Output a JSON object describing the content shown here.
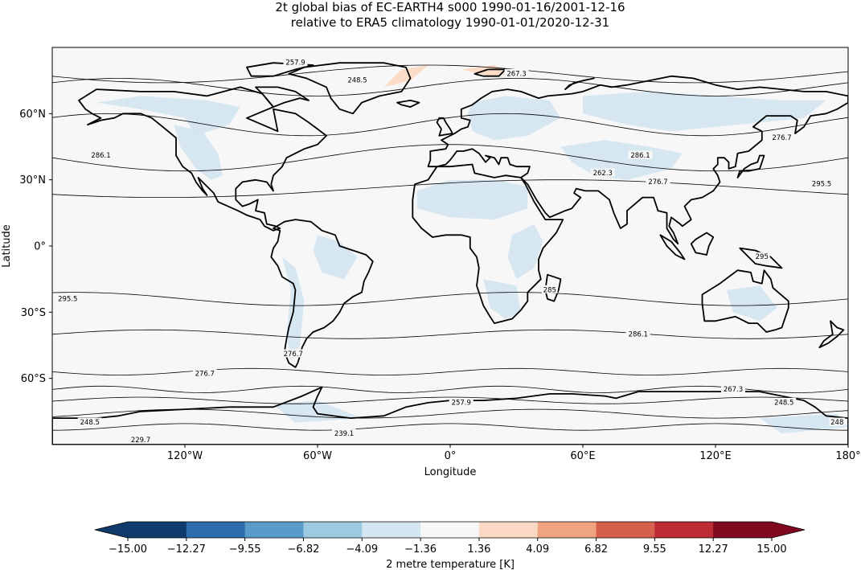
{
  "title": {
    "line1": "2t global bias of EC-EARTH4 s000 1990-01-16/2001-12-16",
    "line2": "relative to ERA5 climatology 1990-01-01/2020-12-31"
  },
  "colors": {
    "land_outline": "#000000",
    "background": "#f7f7f7",
    "bias_light_blue": "#d1e5f0",
    "bias_light_red": "#fddbc7"
  },
  "chart_data": {
    "type": "heatmap",
    "projection": "PlateCarree",
    "xlabel": "Longitude",
    "ylabel": "Latitude",
    "xlim": [
      -180,
      180
    ],
    "ylim": [
      -90,
      90
    ],
    "x_ticks": [
      {
        "value": -120,
        "label": "120°W"
      },
      {
        "value": -60,
        "label": "60°W"
      },
      {
        "value": 0,
        "label": "0°"
      },
      {
        "value": 60,
        "label": "60°E"
      },
      {
        "value": 120,
        "label": "120°E"
      },
      {
        "value": 180,
        "label": "180°"
      }
    ],
    "y_ticks": [
      {
        "value": 60,
        "label": "60°N"
      },
      {
        "value": 30,
        "label": "30°N"
      },
      {
        "value": 0,
        "label": "0°"
      },
      {
        "value": -30,
        "label": "30°S"
      },
      {
        "value": -60,
        "label": "60°S"
      }
    ],
    "colorbar": {
      "label": "2 metre temperature [K]",
      "ticks": [
        "−15.00",
        "−12.27",
        "−9.55",
        "−6.82",
        "−4.09",
        "−1.36",
        "1.36",
        "4.09",
        "6.82",
        "9.55",
        "12.27",
        "15.00"
      ],
      "colors": [
        "#0f3b6d",
        "#2e6dac",
        "#5a9cc9",
        "#9dcae1",
        "#d4e6f1",
        "#f7f7f7",
        "#fcd9c4",
        "#efa383",
        "#d6604d",
        "#bd2b35",
        "#80091f"
      ],
      "extend": "both"
    },
    "contour_labels": [
      {
        "label": "257.9",
        "lon": -70,
        "lat": 83
      },
      {
        "label": "267.3",
        "lon": 30,
        "lat": 78
      },
      {
        "label": "248.5",
        "lon": -42,
        "lat": 75
      },
      {
        "label": "286.1",
        "lon": -158,
        "lat": 41
      },
      {
        "label": "276.7",
        "lon": 150,
        "lat": 49
      },
      {
        "label": "286.1",
        "lon": 86,
        "lat": 41
      },
      {
        "label": "262.3",
        "lon": 69,
        "lat": 33
      },
      {
        "label": "276.7",
        "lon": 94,
        "lat": 29
      },
      {
        "label": "295.5",
        "lon": 168,
        "lat": 28
      },
      {
        "label": "295.5",
        "lon": -173,
        "lat": -24
      },
      {
        "label": "286.1",
        "lon": 85,
        "lat": -40
      },
      {
        "label": "276.7",
        "lon": -111,
        "lat": -58
      },
      {
        "label": "267.3",
        "lon": 128,
        "lat": -65
      },
      {
        "label": "257.9",
        "lon": 5,
        "lat": -71
      },
      {
        "label": "248.5",
        "lon": 151,
        "lat": -71
      },
      {
        "label": "248.5",
        "lon": -163,
        "lat": -80
      },
      {
        "label": "239.1",
        "lon": -48,
        "lat": -85
      },
      {
        "label": "229.7",
        "lon": -140,
        "lat": -88
      },
      {
        "label": "248",
        "lon": 175,
        "lat": -80
      },
      {
        "label": "295",
        "lon": 141,
        "lat": -5
      },
      {
        "label": "276.7",
        "lon": -71,
        "lat": -49
      },
      {
        "label": "285",
        "lon": 45,
        "lat": -20
      }
    ]
  }
}
